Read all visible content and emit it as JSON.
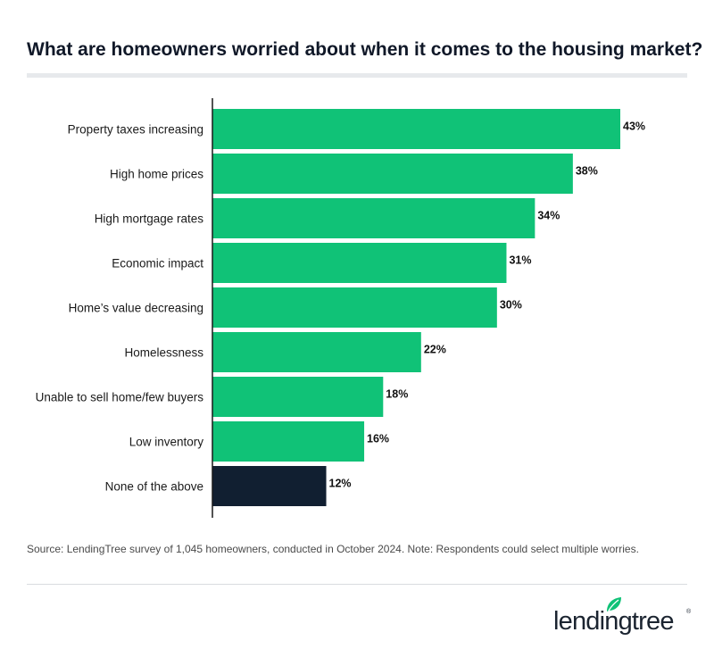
{
  "title": "What are homeowners worried about when it comes to the housing market?",
  "chart_data": {
    "type": "bar",
    "orientation": "horizontal",
    "categories": [
      "Property taxes increasing",
      "High home prices",
      "High mortgage rates",
      "Economic impact",
      "Home’s value decreasing",
      "Homelessness",
      "Unable to sell home/few buyers",
      "Low inventory",
      "None of the above"
    ],
    "values": [
      43,
      38,
      34,
      31,
      30,
      22,
      18,
      16,
      12
    ],
    "value_labels": [
      "43%",
      "38%",
      "34%",
      "31%",
      "30%",
      "22%",
      "18%",
      "16%",
      "12%"
    ],
    "bar_colors": [
      "#10c277",
      "#10c277",
      "#10c277",
      "#10c277",
      "#10c277",
      "#10c277",
      "#10c277",
      "#10c277",
      "#111f31"
    ],
    "xlim": [
      0,
      43
    ],
    "grid": false,
    "legend": "none"
  },
  "footnote": "Source: LendingTree survey of 1,045 homeowners, conducted in October 2024. Note: Respondents could select multiple worries.",
  "logo": {
    "text": "lendingtree",
    "icon": "leaf-icon",
    "registered": "®",
    "accent_color": "#10c277"
  },
  "colors": {
    "accent": "#10c277",
    "dark": "#111f31",
    "title": "#101828"
  }
}
